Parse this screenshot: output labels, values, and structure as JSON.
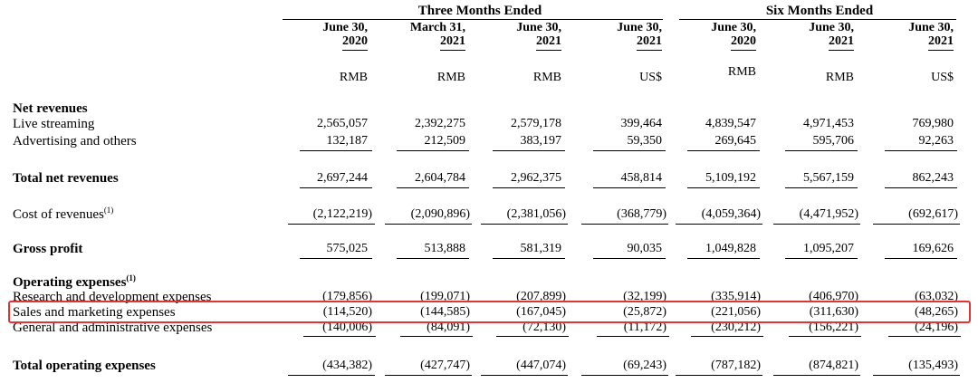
{
  "group_headers": {
    "three_months": "Three Months Ended",
    "six_months": "Six Months Ended"
  },
  "columns": [
    {
      "date1": "June 30,",
      "date2": "2020",
      "currency": "RMB"
    },
    {
      "date1": "March 31,",
      "date2": "2021",
      "currency": "RMB"
    },
    {
      "date1": "June 30,",
      "date2": "2021",
      "currency": "RMB"
    },
    {
      "date1": "June 30,",
      "date2": "2021",
      "currency": "US$"
    },
    {
      "date1": "June 30,",
      "date2": "2020",
      "currency": "RMB"
    },
    {
      "date1": "June 30,",
      "date2": "2021",
      "currency": "RMB"
    },
    {
      "date1": "June 30,",
      "date2": "2021",
      "currency": "US$"
    }
  ],
  "sections": {
    "net_revenues": "Net revenues",
    "operating_expenses": "Operating expenses",
    "operating_expenses_note": "(1)"
  },
  "rows": {
    "live_streaming": {
      "label": "Live streaming",
      "values": [
        "2,565,057",
        "2,392,275",
        "2,579,178",
        "399,464",
        "4,839,547",
        "4,971,453",
        "769,980"
      ]
    },
    "advertising": {
      "label": "Advertising and others",
      "values": [
        "132,187",
        "212,509",
        "383,197",
        "59,350",
        "269,645",
        "595,706",
        "92,263"
      ]
    },
    "total_net_revenues": {
      "label": "Total net revenues",
      "values": [
        "2,697,244",
        "2,604,784",
        "2,962,375",
        "458,814",
        "5,109,192",
        "5,567,159",
        "862,243"
      ]
    },
    "cost_of_revenues": {
      "label": "Cost of revenues",
      "note": "(1)",
      "values": [
        "(2,122,219)",
        "(2,090,896)",
        "(2,381,056)",
        "(368,779)",
        "(4,059,364)",
        "(4,471,952)",
        "(692,617)"
      ]
    },
    "gross_profit": {
      "label": "Gross profit",
      "values": [
        "575,025",
        "513,888",
        "581,319",
        "90,035",
        "1,049,828",
        "1,095,207",
        "169,626"
      ]
    },
    "rnd": {
      "label": "Research and development expenses",
      "values": [
        "(179,856)",
        "(199,071)",
        "(207,899)",
        "(32,199)",
        "(335,914)",
        "(406,970)",
        "(63,032)"
      ]
    },
    "sales_marketing": {
      "label": "Sales and marketing expenses",
      "values": [
        "(114,520)",
        "(144,585)",
        "(167,045)",
        "(25,872)",
        "(221,056)",
        "(311,630)",
        "(48,265)"
      ]
    },
    "gna": {
      "label": "General and administrative expenses",
      "values": [
        "(140,006)",
        "(84,091)",
        "(72,130)",
        "(11,172)",
        "(230,212)",
        "(156,221)",
        "(24,196)"
      ]
    },
    "total_operating_expenses": {
      "label": "Total operating expenses",
      "values": [
        "(434,382)",
        "(427,747)",
        "(447,074)",
        "(69,243)",
        "(787,182)",
        "(874,821)",
        "(135,493)"
      ]
    }
  },
  "highlight_color": "#e03535"
}
